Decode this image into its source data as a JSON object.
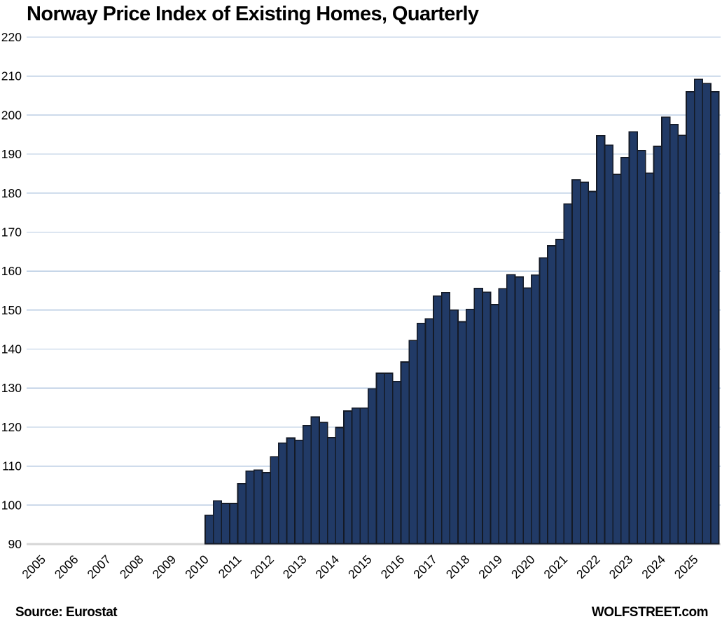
{
  "title": "Norway Price Index of Existing Homes, Quarterly",
  "footer": {
    "source": "Source: Eurostat",
    "brand": "WOLFSTREET.com"
  },
  "colors": {
    "bar_fill": "#213a66",
    "bar_border": "#141a26",
    "gridline": "#b5c9e1",
    "baseline": "#d6d6d6",
    "text": "#000000"
  },
  "chart_data": {
    "type": "bar",
    "title": "Norway Price Index of Existing Homes, Quarterly",
    "xlabel": "",
    "ylabel": "",
    "ylim": [
      90,
      220
    ],
    "ytick_step": 10,
    "yticks": [
      90,
      100,
      110,
      120,
      130,
      140,
      150,
      160,
      170,
      180,
      190,
      200,
      210,
      220
    ],
    "xticks": [
      2005,
      2006,
      2007,
      2008,
      2009,
      2010,
      2011,
      2012,
      2013,
      2014,
      2015,
      2016,
      2017,
      2018,
      2019,
      2020,
      2021,
      2022,
      2023,
      2024,
      2025
    ],
    "grid": "horizontal",
    "legend": "none",
    "x": [
      "2010 Q1",
      "2010 Q2",
      "2010 Q3",
      "2010 Q4",
      "2011 Q1",
      "2011 Q2",
      "2011 Q3",
      "2011 Q4",
      "2012 Q1",
      "2012 Q2",
      "2012 Q3",
      "2012 Q4",
      "2013 Q1",
      "2013 Q2",
      "2013 Q3",
      "2013 Q4",
      "2014 Q1",
      "2014 Q2",
      "2014 Q3",
      "2014 Q4",
      "2015 Q1",
      "2015 Q2",
      "2015 Q3",
      "2015 Q4",
      "2016 Q1",
      "2016 Q2",
      "2016 Q3",
      "2016 Q4",
      "2017 Q1",
      "2017 Q2",
      "2017 Q3",
      "2017 Q4",
      "2018 Q1",
      "2018 Q2",
      "2018 Q3",
      "2018 Q4",
      "2019 Q1",
      "2019 Q2",
      "2019 Q3",
      "2019 Q4",
      "2020 Q1",
      "2020 Q2",
      "2020 Q3",
      "2020 Q4",
      "2021 Q1",
      "2021 Q2",
      "2021 Q3",
      "2021 Q4",
      "2022 Q1",
      "2022 Q2",
      "2022 Q3",
      "2022 Q4",
      "2023 Q1",
      "2023 Q2",
      "2023 Q3",
      "2023 Q4",
      "2024 Q1",
      "2024 Q2",
      "2024 Q3",
      "2024 Q4",
      "2025 Q1",
      "2025 Q2",
      "2025 Q3"
    ],
    "values": [
      97.4,
      101.1,
      100.4,
      100.4,
      105.5,
      108.7,
      109.0,
      108.3,
      112.4,
      115.9,
      117.2,
      116.6,
      120.4,
      122.6,
      121.2,
      117.3,
      119.9,
      124.1,
      124.9,
      124.9,
      129.8,
      133.8,
      133.8,
      131.7,
      136.7,
      142.2,
      146.6,
      147.8,
      153.6,
      154.5,
      150.0,
      147.0,
      150.2,
      155.6,
      154.6,
      151.4,
      155.5,
      159.1,
      158.5,
      155.7,
      159.0,
      163.4,
      166.5,
      168.1,
      177.2,
      183.4,
      182.8,
      180.4,
      194.7,
      192.3,
      184.8,
      189.1,
      195.7,
      190.9,
      185.1,
      192.0,
      199.5,
      197.6,
      194.8,
      206.0,
      209.2,
      208.1,
      206.0
    ]
  }
}
